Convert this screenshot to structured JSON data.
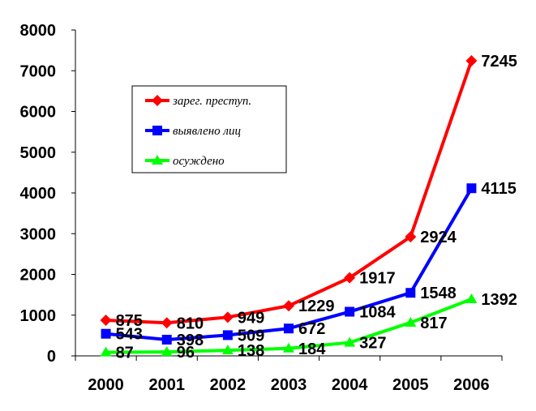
{
  "chart_data": {
    "type": "line",
    "categories": [
      "2000",
      "2001",
      "2002",
      "2003",
      "2004",
      "2005",
      "2006"
    ],
    "series": [
      {
        "name": "зарег. преступ.",
        "color": "#ff0000",
        "marker": "diamond",
        "values": [
          875,
          810,
          949,
          1229,
          1917,
          2924,
          7245
        ],
        "labels": [
          "875",
          "810",
          "949",
          "1229",
          "1917",
          "2924",
          "7245"
        ]
      },
      {
        "name": "выявлено лиц",
        "color": "#0000ff",
        "marker": "square",
        "values": [
          543,
          398,
          509,
          672,
          1084,
          1548,
          4115
        ],
        "labels": [
          "543",
          "398",
          "509",
          "672",
          "1084",
          "1548",
          "4115"
        ]
      },
      {
        "name": "осуждено",
        "color": "#00ff00",
        "marker": "triangle",
        "values": [
          87,
          96,
          138,
          184,
          327,
          817,
          1392
        ],
        "labels": [
          "87",
          "96",
          "138",
          "184",
          "327",
          "817",
          "1392"
        ]
      }
    ],
    "yticks": [
      "0",
      "1000",
      "2000",
      "3000",
      "4000",
      "5000",
      "6000",
      "7000",
      "8000"
    ],
    "ylim": [
      0,
      8000
    ],
    "grid": false,
    "legend": "top-left inside plot",
    "title": "",
    "xlabel": "",
    "ylabel": ""
  }
}
